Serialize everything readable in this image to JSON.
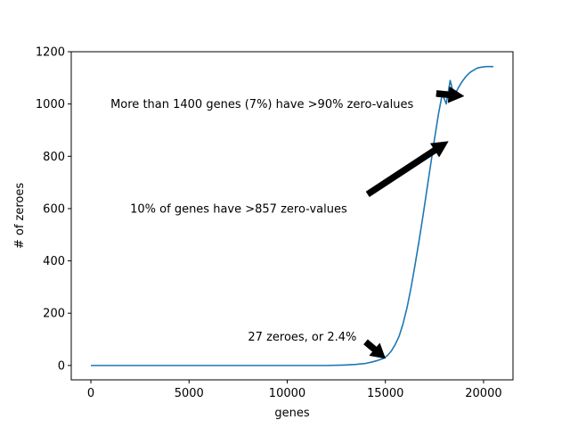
{
  "chart_data": {
    "type": "line",
    "title": "",
    "xlabel": "genes",
    "ylabel": "# of zeroes",
    "xlim": [
      -1000,
      21500
    ],
    "ylim": [
      -55,
      1200
    ],
    "xticks": [
      0,
      5000,
      10000,
      15000,
      20000
    ],
    "yticks": [
      0,
      200,
      400,
      600,
      800,
      1000,
      1200
    ],
    "grid": false,
    "legend": "none",
    "series_color": "#1f77b4",
    "series": [
      {
        "x": [
          0,
          2000,
          4000,
          6000,
          8000,
          10000,
          11000,
          12000,
          12600,
          13000,
          13500,
          14000,
          14300,
          14600,
          14900,
          15100,
          15300,
          15500,
          15700,
          15900,
          16100,
          16300,
          16500,
          16700,
          16900,
          17100,
          17300,
          17500,
          17700,
          17900,
          18100,
          18300,
          18500,
          18700,
          18900,
          19100,
          19300,
          19500,
          19700,
          19900,
          20100,
          20300,
          20500
        ],
        "y": [
          0,
          0,
          0,
          0,
          0,
          0,
          0,
          0,
          1,
          2,
          4,
          8,
          13,
          19,
          27,
          38,
          55,
          80,
          112,
          160,
          220,
          295,
          380,
          470,
          565,
          665,
          765,
          865,
          960,
          1040,
          1000,
          1090,
          1030,
          1060,
          1085,
          1105,
          1120,
          1130,
          1138,
          1141,
          1143,
          1143,
          1143
        ]
      }
    ],
    "annotations": [
      {
        "text": "More than 1400 genes (7%) have >90% zero-values",
        "x": 1000,
        "y": 1000,
        "arrow_from": [
          17600,
          1040
        ],
        "arrow_to": [
          19000,
          1030
        ]
      },
      {
        "text": "10% of genes have >857 zero-values",
        "x": 2000,
        "y": 600,
        "arrow_from": [
          14100,
          655
        ],
        "arrow_to": [
          18200,
          857
        ]
      },
      {
        "text": "27 zeroes, or 2.4%",
        "x": 8000,
        "y": 110,
        "arrow_from": [
          14000,
          90
        ],
        "arrow_to": [
          15000,
          27
        ]
      }
    ]
  }
}
